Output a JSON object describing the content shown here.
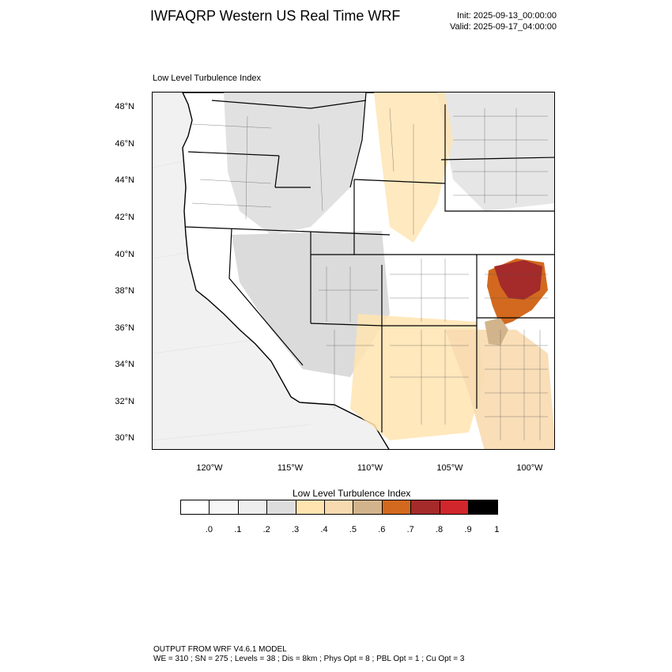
{
  "header": {
    "title": "IWFAQRP Western US Real Time WRF",
    "init": "Init: 2025-09-13_00:00:00",
    "valid": "Valid: 2025-09-17_04:00:00"
  },
  "panel": {
    "title": "Low Level Turbulence Index"
  },
  "axes": {
    "lat_labels": [
      "48°N",
      "46°N",
      "44°N",
      "42°N",
      "40°N",
      "38°N",
      "36°N",
      "34°N",
      "32°N",
      "30°N"
    ],
    "lon_labels": [
      "120°W",
      "115°W",
      "110°W",
      "105°W",
      "100°W"
    ]
  },
  "colorbar": {
    "title": "Low Level Turbulence Index",
    "colors": [
      "#ffffff",
      "#f7f7f7",
      "#eeeeee",
      "#dddddd",
      "#ffe4b0",
      "#f8dab0",
      "#d2b48c",
      "#d2691e",
      "#a52a2a",
      "#d1262b",
      "#000000"
    ],
    "labels": [
      ".0",
      ".1",
      ".2",
      ".3",
      ".4",
      ".5",
      ".6",
      ".7",
      ".8",
      ".9",
      "1"
    ]
  },
  "footer": {
    "line1": "OUTPUT FROM WRF V4.6.1 MODEL",
    "line2": "WE = 310 ; SN = 275 ; Levels = 38 ; Dis = 8km ; Phys Opt = 8 ; PBL Opt = 1 ; Cu Opt = 3"
  }
}
